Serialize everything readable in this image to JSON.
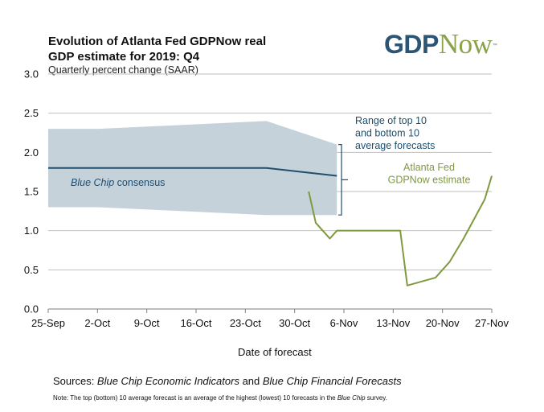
{
  "header": {
    "title_line1": "Evolution of Atlanta Fed GDPNow real",
    "title_line2": "GDP estimate for 2019: Q4",
    "subtitle": "Quarterly percent change (SAAR)"
  },
  "logo": {
    "part1": "GDP",
    "part2": "Now",
    "tm": "™"
  },
  "colors": {
    "band": "#c5d2da",
    "consensus": "#1f4e6e",
    "gdpnow": "#7f9a3e",
    "grid": "#bfbfbf",
    "range_text": "#1f4e6e",
    "gdpnow_text": "#7f9a3e"
  },
  "chart_data": {
    "type": "line",
    "title": "Evolution of Atlanta Fed GDPNow real GDP estimate for 2019: Q4",
    "subtitle": "Quarterly percent change (SAAR)",
    "xlabel": "Date of forecast",
    "ylabel": "",
    "ylim": [
      0,
      3.0
    ],
    "yticks": [
      "0.0",
      "0.5",
      "1.0",
      "1.5",
      "2.0",
      "2.5",
      "3.0"
    ],
    "xticks": [
      "25-Sep",
      "2-Oct",
      "9-Oct",
      "16-Oct",
      "23-Oct",
      "30-Oct",
      "6-Nov",
      "13-Nov",
      "20-Nov",
      "27-Nov"
    ],
    "x_range_days": [
      0,
      63
    ],
    "grid": true,
    "series": [
      {
        "name": "Blue Chip consensus",
        "kind": "line",
        "x": [
          "2019-09-25",
          "2019-10-26",
          "2019-11-05"
        ],
        "y": [
          1.8,
          1.8,
          1.7
        ]
      },
      {
        "name": "Range of top 10 and bottom 10 average forecasts",
        "kind": "band",
        "x": [
          "2019-09-25",
          "2019-10-02",
          "2019-10-26",
          "2019-11-05"
        ],
        "upper": [
          2.3,
          2.3,
          2.4,
          2.1
        ],
        "lower": [
          1.3,
          1.3,
          1.2,
          1.2
        ]
      },
      {
        "name": "Atlanta Fed GDPNow estimate",
        "kind": "line",
        "x": [
          "2019-11-01",
          "2019-11-02",
          "2019-11-04",
          "2019-11-05",
          "2019-11-14",
          "2019-11-15",
          "2019-11-19",
          "2019-11-21",
          "2019-11-23",
          "2019-11-26",
          "2019-11-27"
        ],
        "y": [
          1.5,
          1.1,
          0.9,
          1.0,
          1.0,
          0.3,
          0.4,
          0.6,
          0.9,
          1.4,
          1.7
        ]
      }
    ],
    "annotations": {
      "consensus_label_italic": "Blue Chip",
      "consensus_label_rest": " consensus",
      "range_label": [
        "Range of top 10",
        "and bottom 10",
        "average forecasts"
      ],
      "gdpnow_label": [
        "Atlanta Fed",
        "GDPNow estimate"
      ]
    }
  },
  "footer": {
    "sources_prefix": "Sources: ",
    "sources_italic1": "Blue Chip Economic Indicators",
    "sources_mid": " and ",
    "sources_italic2": "Blue Chip Financial Forecasts",
    "note_prefix": "Note:  The top (bottom) 10 average forecast is an average of the highest (lowest) 10 forecasts in the ",
    "note_italic": "Blue Chip",
    "note_suffix": " survey."
  }
}
